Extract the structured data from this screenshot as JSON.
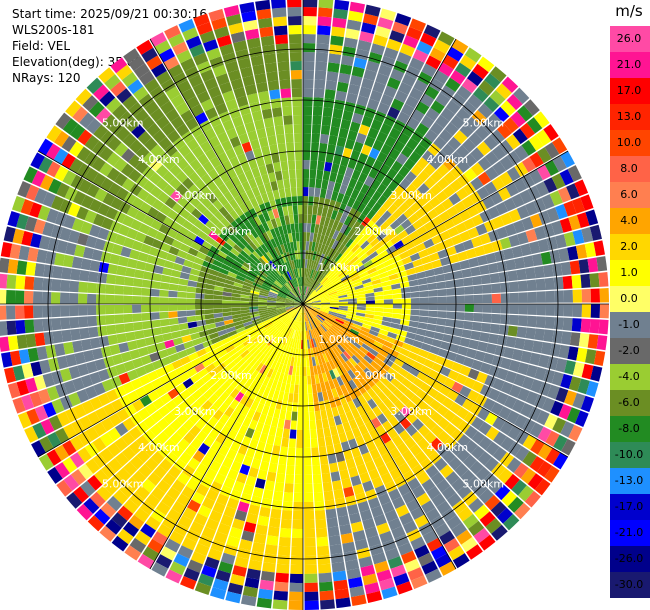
{
  "header": {
    "start_time": "Start time: 2025/09/21 00:30:16",
    "instrument": "WLS200s-181",
    "field": "Field: VEL",
    "elevation": "Elevation(deg): 35.00",
    "nrays": "NRays: 120"
  },
  "chart_data": {
    "type": "ppi-polar-heatmap",
    "field": "VEL",
    "units": "m/s",
    "nrays": 120,
    "elevation_deg": 35.0,
    "max_range_km": 6.0,
    "range_rings_km": [
      1,
      2,
      3,
      4,
      5
    ],
    "range_labels": [
      "1.00km",
      "2.00km",
      "3.00km",
      "4.00km",
      "5.00km"
    ],
    "colorbar": {
      "unit_label": "m/s",
      "tick_labels": [
        "26.0",
        "21.0",
        "17.0",
        "13.0",
        "10.0",
        "8.0",
        "6.0",
        "4.0",
        "2.0",
        "1.0",
        "0.0",
        "-1.0",
        "-2.0",
        "-4.0",
        "-6.0",
        "-8.0",
        "-10.0",
        "-13.0",
        "-17.0",
        "-21.0",
        "-26.0",
        "-30.0"
      ],
      "colors": [
        "#ff4aa5",
        "#ff1493",
        "#ff0000",
        "#ff2400",
        "#ff4500",
        "#ff6347",
        "#ff7f50",
        "#ffa500",
        "#ffd700",
        "#ffff00",
        "#ffff66",
        "#708090",
        "#696969",
        "#9acd32",
        "#6b8e23",
        "#228b22",
        "#2e8b57",
        "#1e90ff",
        "#0000cd",
        "#0000ff",
        "#00008b",
        "#191970"
      ]
    },
    "sectors": [
      {
        "from_deg": 0,
        "to_deg": 40,
        "near": "#6b8e23",
        "mid": "#228b22",
        "far": "#708090"
      },
      {
        "from_deg": 40,
        "to_deg": 75,
        "near": "#ffff00",
        "mid": "#ffd700",
        "far": "#708090"
      },
      {
        "from_deg": 75,
        "to_deg": 110,
        "near": "#ffff00",
        "mid": "#708090",
        "far": "#708090"
      },
      {
        "from_deg": 110,
        "to_deg": 175,
        "near": "#ffa500",
        "mid": "#ffd700",
        "far": "#708090"
      },
      {
        "from_deg": 175,
        "to_deg": 245,
        "near": "#ffff00",
        "mid": "#ffff00",
        "far": "#ffd700"
      },
      {
        "from_deg": 245,
        "to_deg": 290,
        "near": "#6b8e23",
        "mid": "#9acd32",
        "far": "#708090"
      },
      {
        "from_deg": 290,
        "to_deg": 360,
        "near": "#228b22",
        "mid": "#9acd32",
        "far": "#6b8e23"
      }
    ]
  }
}
